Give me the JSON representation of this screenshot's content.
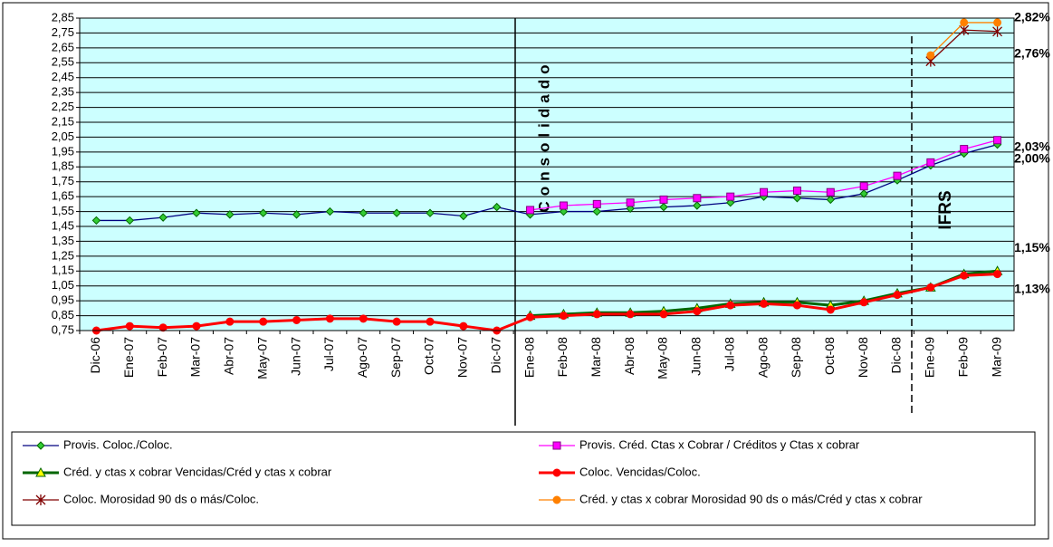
{
  "chart_data": {
    "type": "line",
    "categories": [
      "Dic-06",
      "Ene-07",
      "Feb-07",
      "Mar-07",
      "Abr-07",
      "May-07",
      "Jun-07",
      "Jul-07",
      "Ago-07",
      "Sep-07",
      "Oct-07",
      "Nov-07",
      "Dic-07",
      "Ene-08",
      "Feb-08",
      "Mar-08",
      "Abr-08",
      "May-08",
      "Jun-08",
      "Jul-08",
      "Ago-08",
      "Sep-08",
      "Oct-08",
      "Nov-08",
      "Dic-08",
      "Ene-09",
      "Feb-09",
      "Mar-09"
    ],
    "ylim": [
      0.75,
      2.85
    ],
    "yticks": [
      {
        "value": 0.75,
        "label": "0,75"
      },
      {
        "value": 0.85,
        "label": "0,85"
      },
      {
        "value": 0.95,
        "label": "0,95"
      },
      {
        "value": 1.05,
        "label": "1,05"
      },
      {
        "value": 1.15,
        "label": "1,15"
      },
      {
        "value": 1.25,
        "label": "1,25"
      },
      {
        "value": 1.35,
        "label": "1,35"
      },
      {
        "value": 1.45,
        "label": "1,45"
      },
      {
        "value": 1.55,
        "label": "1,55"
      },
      {
        "value": 1.65,
        "label": "1,65"
      },
      {
        "value": 1.75,
        "label": "1,75"
      },
      {
        "value": 1.85,
        "label": "1,85"
      },
      {
        "value": 1.95,
        "label": "1,95"
      },
      {
        "value": 2.05,
        "label": "2,05"
      },
      {
        "value": 2.15,
        "label": "2,15"
      },
      {
        "value": 2.25,
        "label": "2,25"
      },
      {
        "value": 2.35,
        "label": "2,35"
      },
      {
        "value": 2.45,
        "label": "2,45"
      },
      {
        "value": 2.55,
        "label": "2,55"
      },
      {
        "value": 2.65,
        "label": "2,65"
      },
      {
        "value": 2.75,
        "label": "2,75"
      },
      {
        "value": 2.85,
        "label": "2,85"
      }
    ],
    "grid": true,
    "annotations": [
      "Consolidado",
      "IFRS"
    ],
    "series": [
      {
        "name": "Provis. Coloc./Coloc.",
        "color": "#000080",
        "marker": "diamond",
        "marker_color": "#33cc33",
        "values": [
          1.49,
          1.49,
          1.51,
          1.54,
          1.53,
          1.54,
          1.53,
          1.55,
          1.54,
          1.54,
          1.54,
          1.52,
          1.58,
          1.53,
          1.55,
          1.55,
          1.57,
          1.58,
          1.59,
          1.61,
          1.65,
          1.64,
          1.63,
          1.67,
          1.76,
          1.86,
          1.94,
          2.0
        ],
        "value_labels": [
          null,
          null,
          null,
          null,
          null,
          null,
          null,
          null,
          null,
          null,
          null,
          null,
          null,
          null,
          null,
          null,
          null,
          null,
          null,
          null,
          null,
          null,
          null,
          null,
          null,
          null,
          null,
          "2,00%"
        ]
      },
      {
        "name": "Provis. Créd. Ctas x Cobrar / Créditos y Ctas x cobrar",
        "color": "#ff00ff",
        "marker": "square",
        "marker_color": "#ff00ff",
        "values": [
          null,
          null,
          null,
          null,
          null,
          null,
          null,
          null,
          null,
          null,
          null,
          null,
          null,
          1.56,
          1.59,
          1.6,
          1.61,
          1.63,
          1.64,
          1.65,
          1.68,
          1.69,
          1.68,
          1.72,
          1.79,
          1.88,
          1.97,
          2.03
        ],
        "value_labels": [
          null,
          null,
          null,
          null,
          null,
          null,
          null,
          null,
          null,
          null,
          null,
          null,
          null,
          null,
          null,
          null,
          null,
          null,
          null,
          null,
          null,
          null,
          null,
          null,
          null,
          null,
          null,
          "2,03%"
        ]
      },
      {
        "name": "Créd. y ctas x cobrar Vencidas/Créd y ctas x cobrar",
        "color": "#006600",
        "marker": "triangle",
        "marker_color": "#ffff00",
        "values": [
          null,
          null,
          null,
          null,
          null,
          null,
          null,
          null,
          null,
          null,
          null,
          null,
          null,
          0.85,
          0.86,
          0.87,
          0.87,
          0.88,
          0.9,
          0.93,
          0.94,
          0.94,
          0.92,
          0.95,
          1.0,
          1.04,
          1.13,
          1.15
        ],
        "value_labels": [
          null,
          null,
          null,
          null,
          null,
          null,
          null,
          null,
          null,
          null,
          null,
          null,
          null,
          null,
          null,
          null,
          null,
          null,
          null,
          null,
          null,
          null,
          null,
          null,
          null,
          null,
          null,
          "1,15%"
        ]
      },
      {
        "name": "Coloc. Vencidas/Coloc.",
        "color": "#ff0000",
        "marker": "circle",
        "marker_color": "#ff0000",
        "values": [
          0.75,
          0.78,
          0.77,
          0.78,
          0.81,
          0.81,
          0.82,
          0.83,
          0.83,
          0.81,
          0.81,
          0.78,
          0.75,
          0.84,
          0.85,
          0.86,
          0.86,
          0.86,
          0.88,
          0.92,
          0.93,
          0.92,
          0.89,
          0.94,
          0.99,
          1.04,
          1.12,
          1.13
        ],
        "value_labels": [
          null,
          null,
          null,
          null,
          null,
          null,
          null,
          null,
          null,
          null,
          null,
          null,
          null,
          null,
          null,
          null,
          null,
          null,
          null,
          null,
          null,
          null,
          null,
          null,
          null,
          null,
          null,
          "1,13%"
        ]
      },
      {
        "name": "Coloc. Morosidad 90 ds o más/Coloc.",
        "color": "#800000",
        "marker": "star",
        "marker_color": "#800000",
        "values": [
          null,
          null,
          null,
          null,
          null,
          null,
          null,
          null,
          null,
          null,
          null,
          null,
          null,
          null,
          null,
          null,
          null,
          null,
          null,
          null,
          null,
          null,
          null,
          null,
          null,
          2.56,
          2.77,
          2.76
        ],
        "value_labels": [
          null,
          null,
          null,
          null,
          null,
          null,
          null,
          null,
          null,
          null,
          null,
          null,
          null,
          null,
          null,
          null,
          null,
          null,
          null,
          null,
          null,
          null,
          null,
          null,
          null,
          null,
          null,
          "2,76%"
        ]
      },
      {
        "name": "Créd. y ctas x cobrar Morosidad 90 ds o más/Créd y ctas x cobrar",
        "color": "#ff8000",
        "marker": "circle",
        "marker_color": "#ff8000",
        "values": [
          null,
          null,
          null,
          null,
          null,
          null,
          null,
          null,
          null,
          null,
          null,
          null,
          null,
          null,
          null,
          null,
          null,
          null,
          null,
          null,
          null,
          null,
          null,
          null,
          null,
          2.6,
          2.82,
          2.82
        ],
        "value_labels": [
          null,
          null,
          null,
          null,
          null,
          null,
          null,
          null,
          null,
          null,
          null,
          null,
          null,
          null,
          null,
          null,
          null,
          null,
          null,
          null,
          null,
          null,
          null,
          null,
          null,
          null,
          null,
          "2,82%"
        ]
      }
    ]
  }
}
